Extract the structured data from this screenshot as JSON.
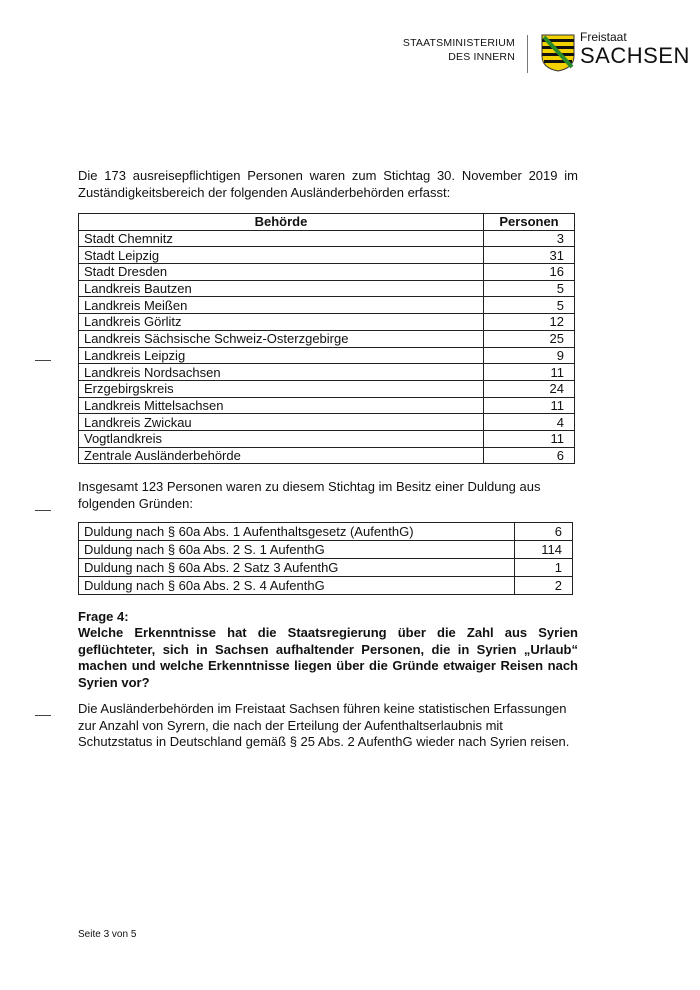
{
  "header": {
    "ministry_line1": "STAATSMINISTERIUM",
    "ministry_line2": "DES INNERN",
    "state_small": "Freistaat",
    "state_big": "SACHSEN"
  },
  "intro_text": "Die 173 ausreisepflichtigen Personen waren zum Stichtag 30. November 2019 im Zuständigkeitsbereich der folgenden Ausländerbehörden erfasst:",
  "table1": {
    "headers": [
      "Behörde",
      "Personen"
    ],
    "rows": [
      [
        "Stadt Chemnitz",
        "3"
      ],
      [
        "Stadt Leipzig",
        "31"
      ],
      [
        "Stadt Dresden",
        "16"
      ],
      [
        "Landkreis Bautzen",
        "5"
      ],
      [
        "Landkreis Meißen",
        "5"
      ],
      [
        "Landkreis Görlitz",
        "12"
      ],
      [
        "Landkreis Sächsische Schweiz-Osterzgebirge",
        "25"
      ],
      [
        "Landkreis Leipzig",
        "9"
      ],
      [
        "Landkreis Nordsachsen",
        "11"
      ],
      [
        "Erzgebirgskreis",
        "24"
      ],
      [
        "Landkreis Mittelsachsen",
        "11"
      ],
      [
        "Landkreis Zwickau",
        "4"
      ],
      [
        "Vogtlandkreis",
        "11"
      ],
      [
        "Zentrale Ausländerbehörde",
        "6"
      ]
    ]
  },
  "duldung_text": "Insgesamt 123 Personen waren zu diesem Stichtag im Besitz einer Duldung aus folgenden Gründen:",
  "table2": {
    "rows": [
      [
        "Duldung nach § 60a Abs. 1 Aufenthaltsgesetz (AufenthG)",
        "6"
      ],
      [
        "Duldung nach § 60a Abs. 2 S. 1 AufenthG",
        "114"
      ],
      [
        "Duldung nach § 60a Abs. 2 Satz 3 AufenthG",
        "1"
      ],
      [
        "Duldung nach § 60a Abs. 2 S. 4 AufenthG",
        "2"
      ]
    ]
  },
  "question_label": "Frage 4:",
  "question_text": "Welche Erkenntnisse hat die Staatsregierung über die Zahl aus Syrien geflüchteter, sich in Sachsen aufhaltender Personen, die in Syrien „Urlaub“ machen und welche Erkenntnisse liegen über die Gründe etwaiger Reisen nach Syrien vor?",
  "answer_text": "Die Ausländerbehörden im Freistaat Sachsen führen keine statistischen Erfassungen zur Anzahl von Syrern, die nach der Erteilung der Aufenthaltserlaubnis mit Schutzstatus in Deutschland gemäß § 25 Abs. 2 AufenthG wieder nach Syrien reisen.",
  "footer": "Seite 3 von 5"
}
